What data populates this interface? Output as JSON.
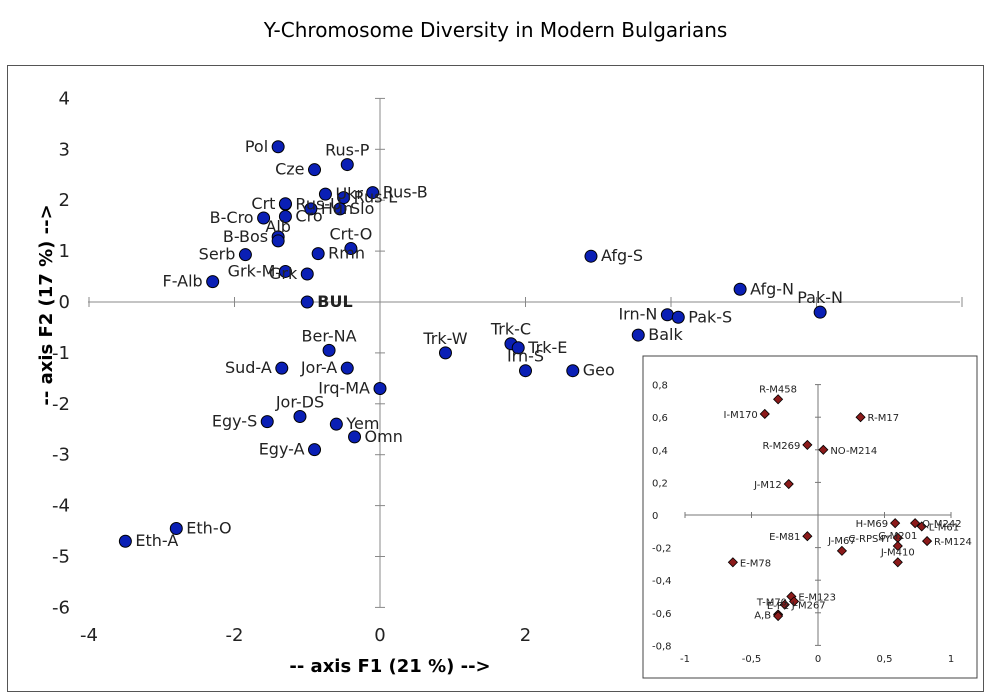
{
  "title": "Y-Chromosome Diversity in Modern Bulgarians",
  "chart_data": [
    {
      "type": "scatter",
      "title": "Y-Chromosome Diversity in Modern Bulgarians",
      "xlabel": "-- axis F1 (21 %) -->",
      "ylabel": "-- axis F2 (17 %) -->",
      "xlim": [
        -4,
        8
      ],
      "ylim": [
        -6,
        4
      ],
      "xticks": [
        "-4",
        "-2",
        "0",
        "2"
      ],
      "yticks": [
        "4",
        "3",
        "2",
        "1",
        "0",
        "-1",
        "-2",
        "-3",
        "-4",
        "-5",
        "-6"
      ],
      "marker_color": "#0a1fb5",
      "points": [
        {
          "label": "Pol",
          "x": -1.4,
          "y": 3.05,
          "anchor": "end"
        },
        {
          "label": "Rus-P",
          "x": -0.45,
          "y": 2.7,
          "anchor": "middle"
        },
        {
          "label": "Cze",
          "x": -0.9,
          "y": 2.6,
          "anchor": "end"
        },
        {
          "label": "Rus-B",
          "x": -0.1,
          "y": 2.15,
          "anchor": "start"
        },
        {
          "label": "Ukr",
          "x": -0.75,
          "y": 2.12,
          "anchor": "start"
        },
        {
          "label": "Rus-U",
          "x": -1.3,
          "y": 1.92,
          "anchor": "start"
        },
        {
          "label": "Crt",
          "x": -1.3,
          "y": 1.93,
          "anchor": "end"
        },
        {
          "label": "Rus-L",
          "x": -0.5,
          "y": 2.05,
          "anchor": "start"
        },
        {
          "label": "Hun",
          "x": -0.95,
          "y": 1.83,
          "anchor": "start"
        },
        {
          "label": "Slo",
          "x": -0.55,
          "y": 1.83,
          "anchor": "start"
        },
        {
          "label": "B-Cro",
          "x": -1.6,
          "y": 1.65,
          "anchor": "end"
        },
        {
          "label": "Cro",
          "x": -1.3,
          "y": 1.68,
          "anchor": "start"
        },
        {
          "label": "B-Bos",
          "x": -1.4,
          "y": 1.28,
          "anchor": "end"
        },
        {
          "label": "Crt-O",
          "x": -0.4,
          "y": 1.05,
          "anchor": "middle"
        },
        {
          "label": "Serb",
          "x": -1.85,
          "y": 0.93,
          "anchor": "end"
        },
        {
          "label": "Alb",
          "x": -1.4,
          "y": 1.2,
          "anchor": "middle"
        },
        {
          "label": "Rmn",
          "x": -0.85,
          "y": 0.95,
          "anchor": "start"
        },
        {
          "label": "F-Alb",
          "x": -2.3,
          "y": 0.4,
          "anchor": "end"
        },
        {
          "label": "Grk-M",
          "x": -1.3,
          "y": 0.6,
          "anchor": "end"
        },
        {
          "label": "Grk",
          "x": -1.0,
          "y": 0.55,
          "anchor": "end"
        },
        {
          "label": "BUL",
          "x": -1.0,
          "y": 0.0,
          "anchor": "start",
          "bold": true
        },
        {
          "label": "Afg-S",
          "x": 2.9,
          "y": 0.9,
          "anchor": "start"
        },
        {
          "label": "Afg-N",
          "x": 4.95,
          "y": 0.25,
          "anchor": "start"
        },
        {
          "label": "Irn-N",
          "x": 3.95,
          "y": -0.25,
          "anchor": "end"
        },
        {
          "label": "Pak-S",
          "x": 4.1,
          "y": -0.3,
          "anchor": "start"
        },
        {
          "label": "Pak-N",
          "x": 6.05,
          "y": -0.2,
          "anchor": "middle"
        },
        {
          "label": "Balk",
          "x": 3.55,
          "y": -0.65,
          "anchor": "start"
        },
        {
          "label": "Trk-W",
          "x": 0.9,
          "y": -1.0,
          "anchor": "middle"
        },
        {
          "label": "Trk-C",
          "x": 1.8,
          "y": -0.82,
          "anchor": "middle"
        },
        {
          "label": "Trk-E",
          "x": 1.9,
          "y": -0.9,
          "anchor": "start"
        },
        {
          "label": "Irn-S",
          "x": 2.0,
          "y": -1.35,
          "anchor": "middle"
        },
        {
          "label": "Geo",
          "x": 2.65,
          "y": -1.35,
          "anchor": "start"
        },
        {
          "label": "Ber-NA",
          "x": -0.7,
          "y": -0.95,
          "anchor": "middle"
        },
        {
          "label": "Sud-A",
          "x": -1.35,
          "y": -1.3,
          "anchor": "end"
        },
        {
          "label": "Jor-A",
          "x": -0.45,
          "y": -1.3,
          "anchor": "end"
        },
        {
          "label": "Irq-MA",
          "x": 0.0,
          "y": -1.7,
          "anchor": "end"
        },
        {
          "label": "Jor-DS",
          "x": -1.1,
          "y": -2.25,
          "anchor": "middle"
        },
        {
          "label": "Egy-S",
          "x": -1.55,
          "y": -2.35,
          "anchor": "end"
        },
        {
          "label": "Yem",
          "x": -0.6,
          "y": -2.4,
          "anchor": "start"
        },
        {
          "label": "Omn",
          "x": -0.35,
          "y": -2.65,
          "anchor": "start"
        },
        {
          "label": "Egy-A",
          "x": -0.9,
          "y": -2.9,
          "anchor": "end"
        },
        {
          "label": "Eth-O",
          "x": -2.8,
          "y": -4.45,
          "anchor": "start"
        },
        {
          "label": "Eth-A",
          "x": -3.5,
          "y": -4.7,
          "anchor": "start"
        }
      ]
    },
    {
      "type": "scatter",
      "title": "",
      "xlim": [
        -1,
        1
      ],
      "ylim": [
        -0.8,
        0.8
      ],
      "xticks": [
        "-1",
        "-0,5",
        "0",
        "0,5",
        "1"
      ],
      "yticks": [
        "0,8",
        "0,6",
        "0,4",
        "0,2",
        "0",
        "-0,2",
        "-0,4",
        "-0,6",
        "-0,8"
      ],
      "marker_color": "#8b1a1a",
      "points": [
        {
          "label": "R-M458",
          "x": -0.3,
          "y": 0.71,
          "anchor": "middle"
        },
        {
          "label": "I-M170",
          "x": -0.4,
          "y": 0.62,
          "anchor": "end"
        },
        {
          "label": "R-M17",
          "x": 0.32,
          "y": 0.6,
          "anchor": "start"
        },
        {
          "label": "R-M269",
          "x": -0.08,
          "y": 0.43,
          "anchor": "end"
        },
        {
          "label": "NO-M214",
          "x": 0.04,
          "y": 0.4,
          "anchor": "start"
        },
        {
          "label": "J-M12",
          "x": -0.22,
          "y": 0.19,
          "anchor": "end"
        },
        {
          "label": "H-M69",
          "x": 0.58,
          "y": -0.05,
          "anchor": "end"
        },
        {
          "label": "Q-M242",
          "x": 0.73,
          "y": -0.05,
          "anchor": "start"
        },
        {
          "label": "L-M61",
          "x": 0.78,
          "y": -0.07,
          "anchor": "start"
        },
        {
          "label": "C-RPS4Y",
          "x": 0.6,
          "y": -0.14,
          "anchor": "end"
        },
        {
          "label": "R-M124",
          "x": 0.82,
          "y": -0.16,
          "anchor": "start"
        },
        {
          "label": "E-M81",
          "x": -0.08,
          "y": -0.13,
          "anchor": "end"
        },
        {
          "label": "G-M201",
          "x": 0.6,
          "y": -0.19,
          "anchor": "middle"
        },
        {
          "label": "J-M67",
          "x": 0.18,
          "y": -0.22,
          "anchor": "middle"
        },
        {
          "label": "E-M78",
          "x": -0.64,
          "y": -0.29,
          "anchor": "start"
        },
        {
          "label": "J-M410",
          "x": 0.6,
          "y": -0.29,
          "anchor": "middle"
        },
        {
          "label": "E-M123",
          "x": -0.2,
          "y": -0.5,
          "anchor": "start"
        },
        {
          "label": "T-M70",
          "x": -0.18,
          "y": -0.53,
          "anchor": "end"
        },
        {
          "label": "A,B",
          "x": -0.3,
          "y": -0.61,
          "anchor": "end"
        },
        {
          "label": "J-M267",
          "x": -0.25,
          "y": -0.55,
          "anchor": "start"
        },
        {
          "label": "E-P2",
          "x": -0.3,
          "y": -0.62,
          "anchor": "middle"
        }
      ]
    }
  ]
}
